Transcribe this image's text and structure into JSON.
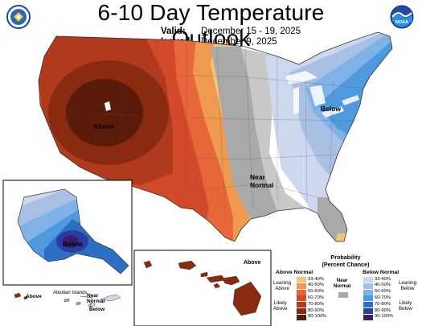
{
  "header": {
    "title": "6-10 Day Temperature Outlook",
    "valid_label": "Valid:",
    "valid_value": "December 15 - 19, 2025",
    "issued_label": "Issued:",
    "issued_value": "December 9, 2025"
  },
  "logos": {
    "left_icon": "commerce-seal-icon",
    "right_icon": "noaa-logo-icon",
    "noaa_text": "NOAA"
  },
  "map_labels": {
    "conus_above": "Above",
    "conus_below": "Below",
    "conus_near_normal": "Near\nNormal",
    "alaska_below": "Below",
    "hawaii_above": "Above",
    "aleutian_islands": "Aleutian Islands",
    "aleutian_above": "Above",
    "aleutian_near_normal": "Near\nNormal",
    "aleutian_below": "Below"
  },
  "legend": {
    "title": "Probability\n(Percent Chance)",
    "above_header": "Above Normal",
    "below_header": "Below Normal",
    "near_header": "Near\nNormal",
    "leaning_above": "Leaning\nAbove",
    "likely_above": "Likely\nAbove",
    "leaning_below": "Leaning\nBelow",
    "likely_below": "Likely\nBelow",
    "ranges": [
      "33-40%",
      "40-50%",
      "50-60%",
      "60-70%",
      "70-80%",
      "80-90%",
      "90-100%"
    ],
    "above_colors": [
      "#f5c27c",
      "#ef9a4f",
      "#e8673a",
      "#d24a2a",
      "#b23a1c",
      "#8a2a10",
      "#5a1c08"
    ],
    "below_colors": [
      "#cdd8ee",
      "#a9c0e5",
      "#7fb2e6",
      "#4f99de",
      "#2d6fc4",
      "#2b3d9e",
      "#36206b"
    ],
    "near_color": "#a9a9a9"
  }
}
